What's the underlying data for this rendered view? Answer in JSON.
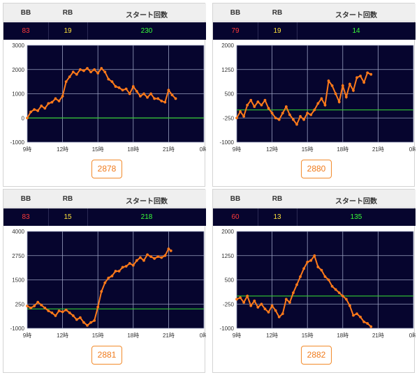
{
  "headers": {
    "bb": "BB",
    "rb": "RB",
    "start": "スタート回数"
  },
  "colors": {
    "line": "#ff7a1a",
    "zero": "#33cc33",
    "plot_bg": "#06052e",
    "grid": "#9aa0c0"
  },
  "x_ticks": [
    "9時",
    "12時",
    "15時",
    "18時",
    "21時",
    "0時"
  ],
  "machines": [
    {
      "bb": "83",
      "rb": "19",
      "start": "230",
      "number": "2878",
      "chart_data": {
        "type": "line",
        "ylim": [
          -1000,
          3000
        ],
        "y_ticks": [
          "3000",
          "2000",
          "1000",
          "0",
          "-1000"
        ],
        "x_range_hours": [
          9,
          24
        ],
        "x": [
          9.0,
          9.3,
          9.6,
          9.9,
          10.2,
          10.5,
          10.8,
          11.1,
          11.4,
          11.7,
          12.0,
          12.3,
          12.6,
          12.9,
          13.2,
          13.5,
          13.8,
          14.1,
          14.4,
          14.7,
          15.0,
          15.3,
          15.6,
          15.9,
          16.2,
          16.5,
          16.8,
          17.1,
          17.4,
          17.7,
          18.0,
          18.3,
          18.6,
          18.9,
          19.2,
          19.5,
          19.8,
          20.1,
          20.4,
          20.7,
          21.0,
          21.3,
          21.6
        ],
        "y": [
          0,
          250,
          350,
          300,
          500,
          400,
          600,
          650,
          800,
          700,
          900,
          1500,
          1700,
          1900,
          1800,
          2000,
          1950,
          2050,
          1900,
          2000,
          1850,
          2050,
          1900,
          1600,
          1500,
          1300,
          1250,
          1150,
          1200,
          1000,
          1300,
          1100,
          900,
          1000,
          850,
          1000,
          800,
          800,
          700,
          650,
          1150,
          950,
          800
        ]
      }
    },
    {
      "bb": "79",
      "rb": "19",
      "start": "14",
      "number": "2880",
      "chart_data": {
        "type": "line",
        "ylim": [
          -1000,
          2000
        ],
        "y_ticks": [
          "2000",
          "1250",
          "500",
          "-250",
          "-1000"
        ],
        "x_range_hours": [
          9,
          24
        ],
        "x": [
          9.0,
          9.3,
          9.6,
          9.9,
          10.2,
          10.5,
          10.8,
          11.1,
          11.4,
          11.7,
          12.0,
          12.3,
          12.6,
          12.9,
          13.2,
          13.5,
          13.8,
          14.1,
          14.4,
          14.7,
          15.0,
          15.3,
          15.6,
          15.9,
          16.2,
          16.5,
          16.8,
          17.1,
          17.4,
          17.7,
          18.0,
          18.3,
          18.6,
          18.9,
          19.2,
          19.5,
          19.8,
          20.1,
          20.4
        ],
        "y": [
          -250,
          -50,
          -200,
          150,
          300,
          100,
          250,
          150,
          300,
          50,
          -100,
          -250,
          -300,
          -100,
          100,
          -150,
          -300,
          -450,
          -200,
          -300,
          -100,
          -150,
          0,
          200,
          350,
          150,
          900,
          750,
          500,
          250,
          750,
          400,
          800,
          600,
          1000,
          1050,
          850,
          1150,
          1100
        ]
      }
    },
    {
      "bb": "83",
      "rb": "15",
      "start": "218",
      "number": "2881",
      "chart_data": {
        "type": "line",
        "ylim": [
          -1000,
          4000
        ],
        "y_ticks": [
          "4000",
          "2750",
          "1500",
          "250",
          "-1000"
        ],
        "x_range_hours": [
          9,
          24
        ],
        "x": [
          9.0,
          9.3,
          9.6,
          9.9,
          10.2,
          10.5,
          10.8,
          11.1,
          11.4,
          11.7,
          12.0,
          12.3,
          12.6,
          12.9,
          13.2,
          13.5,
          13.8,
          14.1,
          14.4,
          14.7,
          15.0,
          15.3,
          15.6,
          15.9,
          16.2,
          16.5,
          16.8,
          17.1,
          17.4,
          17.7,
          18.0,
          18.3,
          18.6,
          18.9,
          19.2,
          19.5,
          19.8,
          20.1,
          20.4,
          20.7,
          21.0,
          21.2
        ],
        "y": [
          150,
          50,
          150,
          350,
          200,
          50,
          -100,
          -200,
          -350,
          -100,
          -150,
          -50,
          -200,
          -350,
          -550,
          -450,
          -700,
          -850,
          -700,
          -600,
          100,
          900,
          1350,
          1600,
          1700,
          1950,
          1950,
          2150,
          2200,
          2350,
          2250,
          2500,
          2650,
          2500,
          2800,
          2700,
          2600,
          2700,
          2650,
          2750,
          3100,
          3000
        ]
      }
    },
    {
      "bb": "60",
      "rb": "13",
      "start": "135",
      "number": "2882",
      "chart_data": {
        "type": "line",
        "ylim": [
          -1000,
          2000
        ],
        "y_ticks": [
          "2000",
          "1250",
          "500",
          "-250",
          "-1000"
        ],
        "x_range_hours": [
          9,
          24
        ],
        "x": [
          9.0,
          9.3,
          9.6,
          9.9,
          10.2,
          10.5,
          10.8,
          11.1,
          11.4,
          11.7,
          12.0,
          12.3,
          12.6,
          12.9,
          13.2,
          13.5,
          13.8,
          14.1,
          14.4,
          14.7,
          15.0,
          15.3,
          15.6,
          15.9,
          16.2,
          16.5,
          16.8,
          17.1,
          17.4,
          17.7,
          18.0,
          18.3,
          18.6,
          18.9,
          19.2,
          19.5,
          19.8,
          20.1,
          20.4
        ],
        "y": [
          -100,
          -50,
          -200,
          0,
          -300,
          -150,
          -350,
          -250,
          -400,
          -500,
          -300,
          -450,
          -650,
          -550,
          -100,
          -200,
          100,
          350,
          600,
          850,
          1050,
          1100,
          1250,
          900,
          800,
          600,
          500,
          300,
          200,
          100,
          0,
          -100,
          -300,
          -600,
          -550,
          -650,
          -800,
          -850,
          -950
        ]
      }
    }
  ]
}
